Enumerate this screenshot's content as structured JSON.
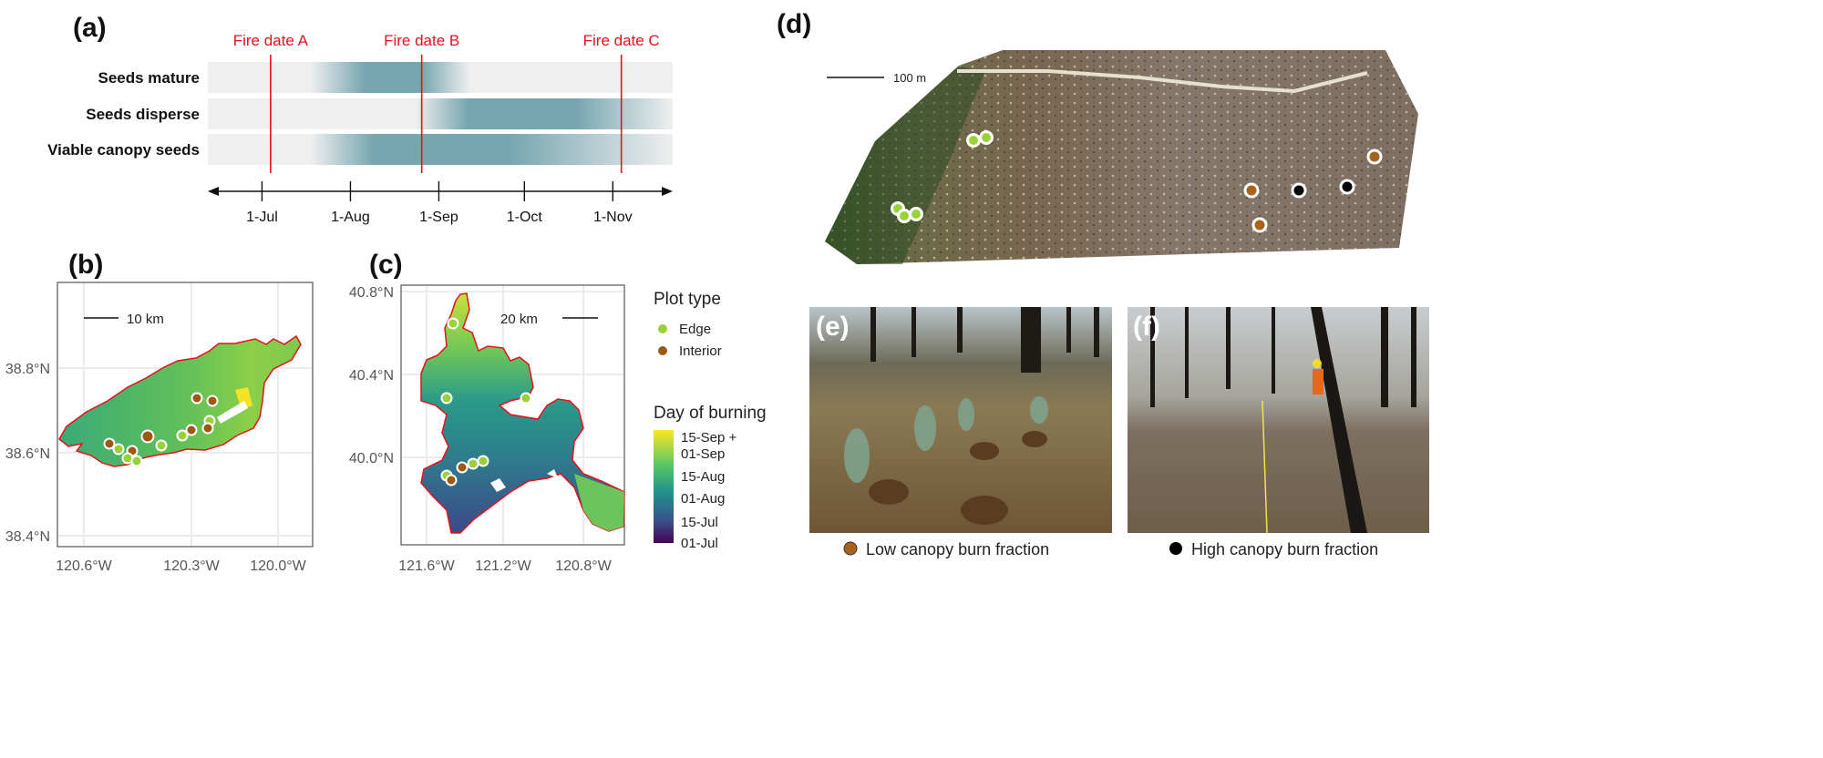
{
  "panel_labels": {
    "a": "(a)",
    "b": "(b)",
    "c": "(c)",
    "d": "(d)",
    "e": "(e)",
    "f": "(f)"
  },
  "chart_data": {
    "type": "timeline",
    "axis_ticks": [
      {
        "label": "1-Jul",
        "doy": 182
      },
      {
        "label": "1-Aug",
        "doy": 213
      },
      {
        "label": "1-Sep",
        "doy": 244
      },
      {
        "label": "1-Oct",
        "doy": 274
      },
      {
        "label": "1-Nov",
        "doy": 305
      }
    ],
    "domain_doy": [
      163,
      326
    ],
    "fire_dates": [
      {
        "label": "Fire date A",
        "doy": 185
      },
      {
        "label": "Fire date B",
        "doy": 238
      },
      {
        "label": "Fire date C",
        "doy": 308
      }
    ],
    "rows": [
      {
        "label": "Seeds mature",
        "ramp_in": [
          199,
          218
        ],
        "ramp_out": [
          238,
          255
        ]
      },
      {
        "label": "Seeds disperse",
        "ramp_in": [
          236,
          254
        ],
        "ramp_out": [
          292,
          326
        ]
      },
      {
        "label": "Viable canopy seeds",
        "ramp_in": [
          199,
          221
        ],
        "ramp_out": [
          269,
          326
        ]
      }
    ],
    "colors": {
      "bar": "#efefef",
      "phase": "#77a6b0",
      "fire": "#e8101c"
    }
  },
  "map_b": {
    "scale": "10 km",
    "y_ticks": [
      "38.8°N",
      "38.6°N",
      "38.4°N"
    ],
    "x_ticks": [
      "120.6°W",
      "120.3°W",
      "120.0°W"
    ]
  },
  "map_c": {
    "scale": "20 km",
    "y_ticks": [
      "40.8°N",
      "40.4°N",
      "40.0°N"
    ],
    "x_ticks": [
      "121.6°W",
      "121.2°W",
      "120.8°W"
    ]
  },
  "legend": {
    "plot_type_title": "Plot type",
    "plot_types": [
      {
        "label": "Edge",
        "color": "#9ad13a"
      },
      {
        "label": "Interior",
        "color": "#9a5a12"
      }
    ],
    "day_title": "Day of burning",
    "day_labels": [
      "15-Sep +",
      "01-Sep",
      "15-Aug",
      "01-Aug",
      "15-Jul",
      "01-Jul"
    ]
  },
  "panel_d": {
    "scale": "100 m"
  },
  "captions": {
    "e": "Low canopy burn fraction",
    "f": "High canopy burn fraction",
    "e_color": "#a9621c",
    "f_color": "#000000"
  }
}
